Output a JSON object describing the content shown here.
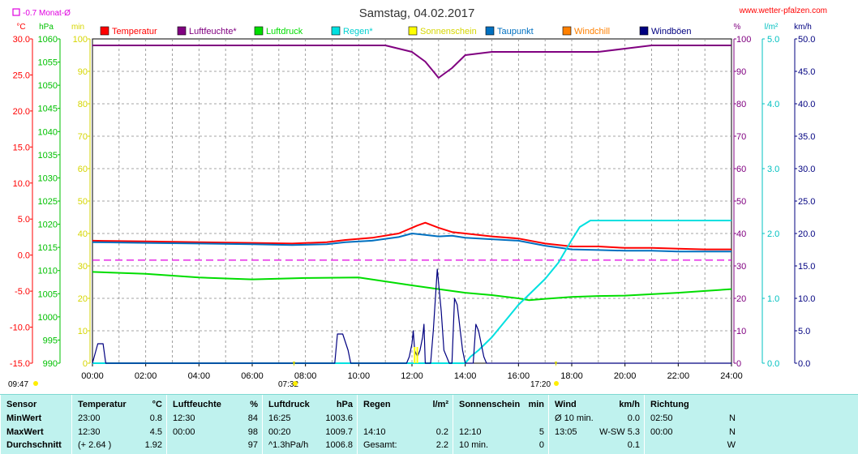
{
  "header": {
    "title": "Samstag, 04.02.2017",
    "site": "www.wetter-pfalzen.com",
    "monthly_avg_label": "-0.7 Monat-Ø"
  },
  "units": {
    "temp": "°C",
    "pressure": "hPa",
    "minutes": "min",
    "percent": "%",
    "rain": "l/m²",
    "wind": "km/h"
  },
  "markers": {
    "sunrise": "07:32",
    "sunset": "17:20",
    "sunshine_start": "09:47"
  },
  "colors": {
    "temp": "#ff0000",
    "humidity": "#800080",
    "pressure": "#00dd00",
    "rain": "#00e0e0",
    "sun": "#ffff00",
    "dewpoint": "#0070c0",
    "windchill": "#ff8000",
    "gust": "#000080",
    "monthly_avg": "#e000e0",
    "grid": "#808080"
  },
  "chart_data": {
    "type": "line",
    "title": "Samstag, 04.02.2017",
    "x": {
      "unit": "hour",
      "range": [
        0,
        24
      ],
      "tick_labels": [
        "00:00",
        "02:00",
        "04:00",
        "06:00",
        "08:00",
        "10:00",
        "12:00",
        "14:00",
        "16:00",
        "18:00",
        "20:00",
        "22:00",
        "24:00"
      ]
    },
    "axes": {
      "temp": {
        "label": "°C",
        "range": [
          -15,
          30
        ],
        "ticks": [
          "-15.0",
          "-10.0",
          "-5.0",
          "0.0",
          "5.0",
          "10.0",
          "15.0",
          "20.0",
          "25.0",
          "30.0"
        ]
      },
      "pressure": {
        "label": "hPa",
        "range": [
          990,
          1060
        ],
        "ticks": [
          "990",
          "995",
          "1000",
          "1005",
          "1010",
          "1015",
          "1020",
          "1025",
          "1030",
          "1035",
          "1040",
          "1045",
          "1050",
          "1055",
          "1060"
        ]
      },
      "minutes": {
        "label": "min",
        "range": [
          0,
          100
        ],
        "ticks": [
          "0",
          "10",
          "20",
          "30",
          "40",
          "50",
          "60",
          "70",
          "80",
          "90",
          "100"
        ]
      },
      "percent": {
        "label": "%",
        "range": [
          0,
          100
        ],
        "ticks": [
          "0",
          "10",
          "20",
          "30",
          "40",
          "50",
          "60",
          "70",
          "80",
          "90",
          "100"
        ]
      },
      "rain": {
        "label": "l/m²",
        "range": [
          0,
          5
        ],
        "ticks": [
          "0.0",
          "1.0",
          "2.0",
          "3.0",
          "4.0",
          "5.0"
        ]
      },
      "wind": {
        "label": "km/h",
        "range": [
          0,
          50
        ],
        "ticks": [
          "0.0",
          "5.0",
          "10.0",
          "15.0",
          "20.0",
          "25.0",
          "30.0",
          "35.0",
          "40.0",
          "45.0",
          "50.0"
        ]
      }
    },
    "grid": true,
    "legend": [
      {
        "name": "Temperatur",
        "color": "#ff0000"
      },
      {
        "name": "Luftfeuchte*",
        "color": "#800080"
      },
      {
        "name": "Luftdruck",
        "color": "#00dd00"
      },
      {
        "name": "Regen*",
        "color": "#00e0e0"
      },
      {
        "name": "Sonnenschein",
        "color": "#ffff00"
      },
      {
        "name": "Taupunkt",
        "color": "#0070c0"
      },
      {
        "name": "Windchill",
        "color": "#ff8000"
      },
      {
        "name": "Windböen",
        "color": "#000080"
      }
    ],
    "monthly_avg_temp": -0.7,
    "series": [
      {
        "name": "Temperatur",
        "axis": "temp",
        "color": "#ff0000",
        "x": [
          0,
          2,
          4,
          6,
          7.5,
          8.8,
          9.5,
          10.5,
          11.5,
          12.2,
          12.5,
          13,
          13.5,
          14,
          15,
          16,
          17,
          18,
          19,
          20,
          21,
          22,
          23,
          24
        ],
        "y": [
          2.0,
          1.9,
          1.8,
          1.7,
          1.6,
          1.8,
          2.1,
          2.4,
          3.0,
          4.1,
          4.5,
          3.8,
          3.2,
          3.0,
          2.6,
          2.3,
          1.6,
          1.2,
          1.2,
          1.0,
          1.0,
          0.9,
          0.8,
          0.8
        ]
      },
      {
        "name": "Taupunkt",
        "axis": "temp",
        "color": "#0070c0",
        "x": [
          0,
          2,
          4,
          6,
          7.5,
          8.8,
          9.5,
          10.5,
          11.5,
          12,
          12.5,
          13,
          13.5,
          14,
          15,
          16,
          17,
          18,
          19,
          20,
          21,
          22,
          23,
          24
        ],
        "y": [
          1.8,
          1.7,
          1.6,
          1.5,
          1.4,
          1.5,
          1.8,
          2.0,
          2.5,
          3.0,
          2.8,
          2.6,
          2.7,
          2.4,
          2.2,
          2.0,
          1.3,
          0.8,
          0.7,
          0.6,
          0.6,
          0.5,
          0.5,
          0.5
        ]
      },
      {
        "name": "Luftfeuchte*",
        "axis": "percent",
        "color": "#800080",
        "x": [
          0,
          6,
          10,
          11,
          12,
          12.5,
          12.8,
          13,
          13.5,
          14,
          15,
          16,
          17,
          18,
          19,
          20,
          21,
          22,
          24
        ],
        "y": [
          98,
          98,
          98,
          98,
          96,
          93,
          90,
          88,
          91,
          95,
          96,
          96,
          96,
          96,
          96,
          97,
          98,
          98,
          98
        ]
      },
      {
        "name": "Luftdruck",
        "axis": "pressure",
        "color": "#00dd00",
        "x": [
          0,
          2,
          3,
          4,
          6,
          8,
          10,
          12,
          13,
          14,
          15,
          16,
          16.4,
          17,
          18,
          19,
          20,
          21,
          22,
          23,
          24
        ],
        "y": [
          1009.7,
          1009.3,
          1008.9,
          1008.5,
          1008.1,
          1008.4,
          1008.5,
          1006.8,
          1006.0,
          1005.2,
          1004.7,
          1004.0,
          1003.6,
          1003.9,
          1004.3,
          1004.5,
          1004.6,
          1004.9,
          1005.2,
          1005.6,
          1006.0
        ]
      },
      {
        "name": "Regen*",
        "axis": "rain",
        "color": "#00e0e0",
        "x": [
          0,
          14,
          14.2,
          14.5,
          15,
          15.5,
          16,
          16.5,
          17,
          17.5,
          18,
          18.3,
          18.7,
          19,
          20,
          21,
          22,
          24
        ],
        "y": [
          0,
          0,
          0.1,
          0.2,
          0.4,
          0.65,
          0.9,
          1.1,
          1.3,
          1.55,
          1.9,
          2.1,
          2.2,
          2.2,
          2.2,
          2.2,
          2.2,
          2.2
        ]
      },
      {
        "name": "Windböen",
        "axis": "wind",
        "color": "#000080",
        "x": [
          0,
          0.1,
          0.2,
          0.4,
          0.5,
          9.1,
          9.2,
          9.4,
          9.6,
          9.7,
          11.8,
          11.9,
          12.0,
          12.05,
          12.1,
          12.2,
          12.3,
          12.4,
          12.45,
          12.5,
          12.7,
          12.8,
          12.95,
          13.1,
          13.2,
          13.4,
          13.5,
          13.6,
          13.7,
          13.9,
          14.0,
          14.3,
          14.4,
          14.5,
          14.7,
          14.8,
          24
        ],
        "y": [
          0,
          1.5,
          3,
          3,
          0,
          0,
          4.5,
          4.5,
          2,
          0,
          0,
          1,
          3,
          5,
          2,
          1,
          2,
          4,
          6,
          0,
          0,
          5,
          14.5,
          8,
          2,
          0,
          0,
          10,
          9,
          2,
          0,
          0,
          6,
          5,
          1,
          0,
          0
        ]
      },
      {
        "name": "Sonnenschein",
        "axis": "minutes",
        "color": "#ffff00",
        "x": [
          12.1,
          12.2
        ],
        "y": [
          5,
          5
        ]
      }
    ]
  },
  "stats": {
    "columns": [
      {
        "title": "Sensor",
        "unit": "",
        "rows": [
          [
            "MinWert",
            ""
          ],
          [
            "MaxWert",
            ""
          ],
          [
            "Durchschnitt",
            ""
          ]
        ]
      },
      {
        "title": "Temperatur",
        "unit": "°C",
        "rows": [
          [
            "23:00",
            "0.8"
          ],
          [
            "12:30",
            "4.5"
          ],
          [
            "(+ 2.64 )",
            "1.92"
          ]
        ]
      },
      {
        "title": "Luftfeuchte",
        "unit": "%",
        "rows": [
          [
            "12:30",
            "84"
          ],
          [
            "00:00",
            "98"
          ],
          [
            "",
            "97"
          ]
        ]
      },
      {
        "title": "Luftdruck",
        "unit": "hPa",
        "rows": [
          [
            "16:25",
            "1003.6"
          ],
          [
            "00:20",
            "1009.7"
          ],
          [
            "^1.3hPa/h",
            "1006.8"
          ]
        ]
      },
      {
        "title": "Regen",
        "unit": "l/m²",
        "rows": [
          [
            "",
            ""
          ],
          [
            "14:10",
            "0.2"
          ],
          [
            "Gesamt:",
            "2.2"
          ]
        ]
      },
      {
        "title": "Sonnenschein",
        "unit": "min",
        "rows": [
          [
            "",
            ""
          ],
          [
            "12:10",
            "5"
          ],
          [
            "10 min.",
            "0"
          ]
        ]
      },
      {
        "title": "Wind",
        "unit": "km/h",
        "rows": [
          [
            "Ø 10 min.",
            "0.0"
          ],
          [
            "13:05",
            "W-SW 5.3"
          ],
          [
            "",
            "0.1"
          ]
        ]
      },
      {
        "title": "Richtung",
        "unit": "",
        "rows": [
          [
            "02:50",
            "N"
          ],
          [
            "00:00",
            "N"
          ],
          [
            "",
            "W"
          ]
        ]
      }
    ]
  }
}
